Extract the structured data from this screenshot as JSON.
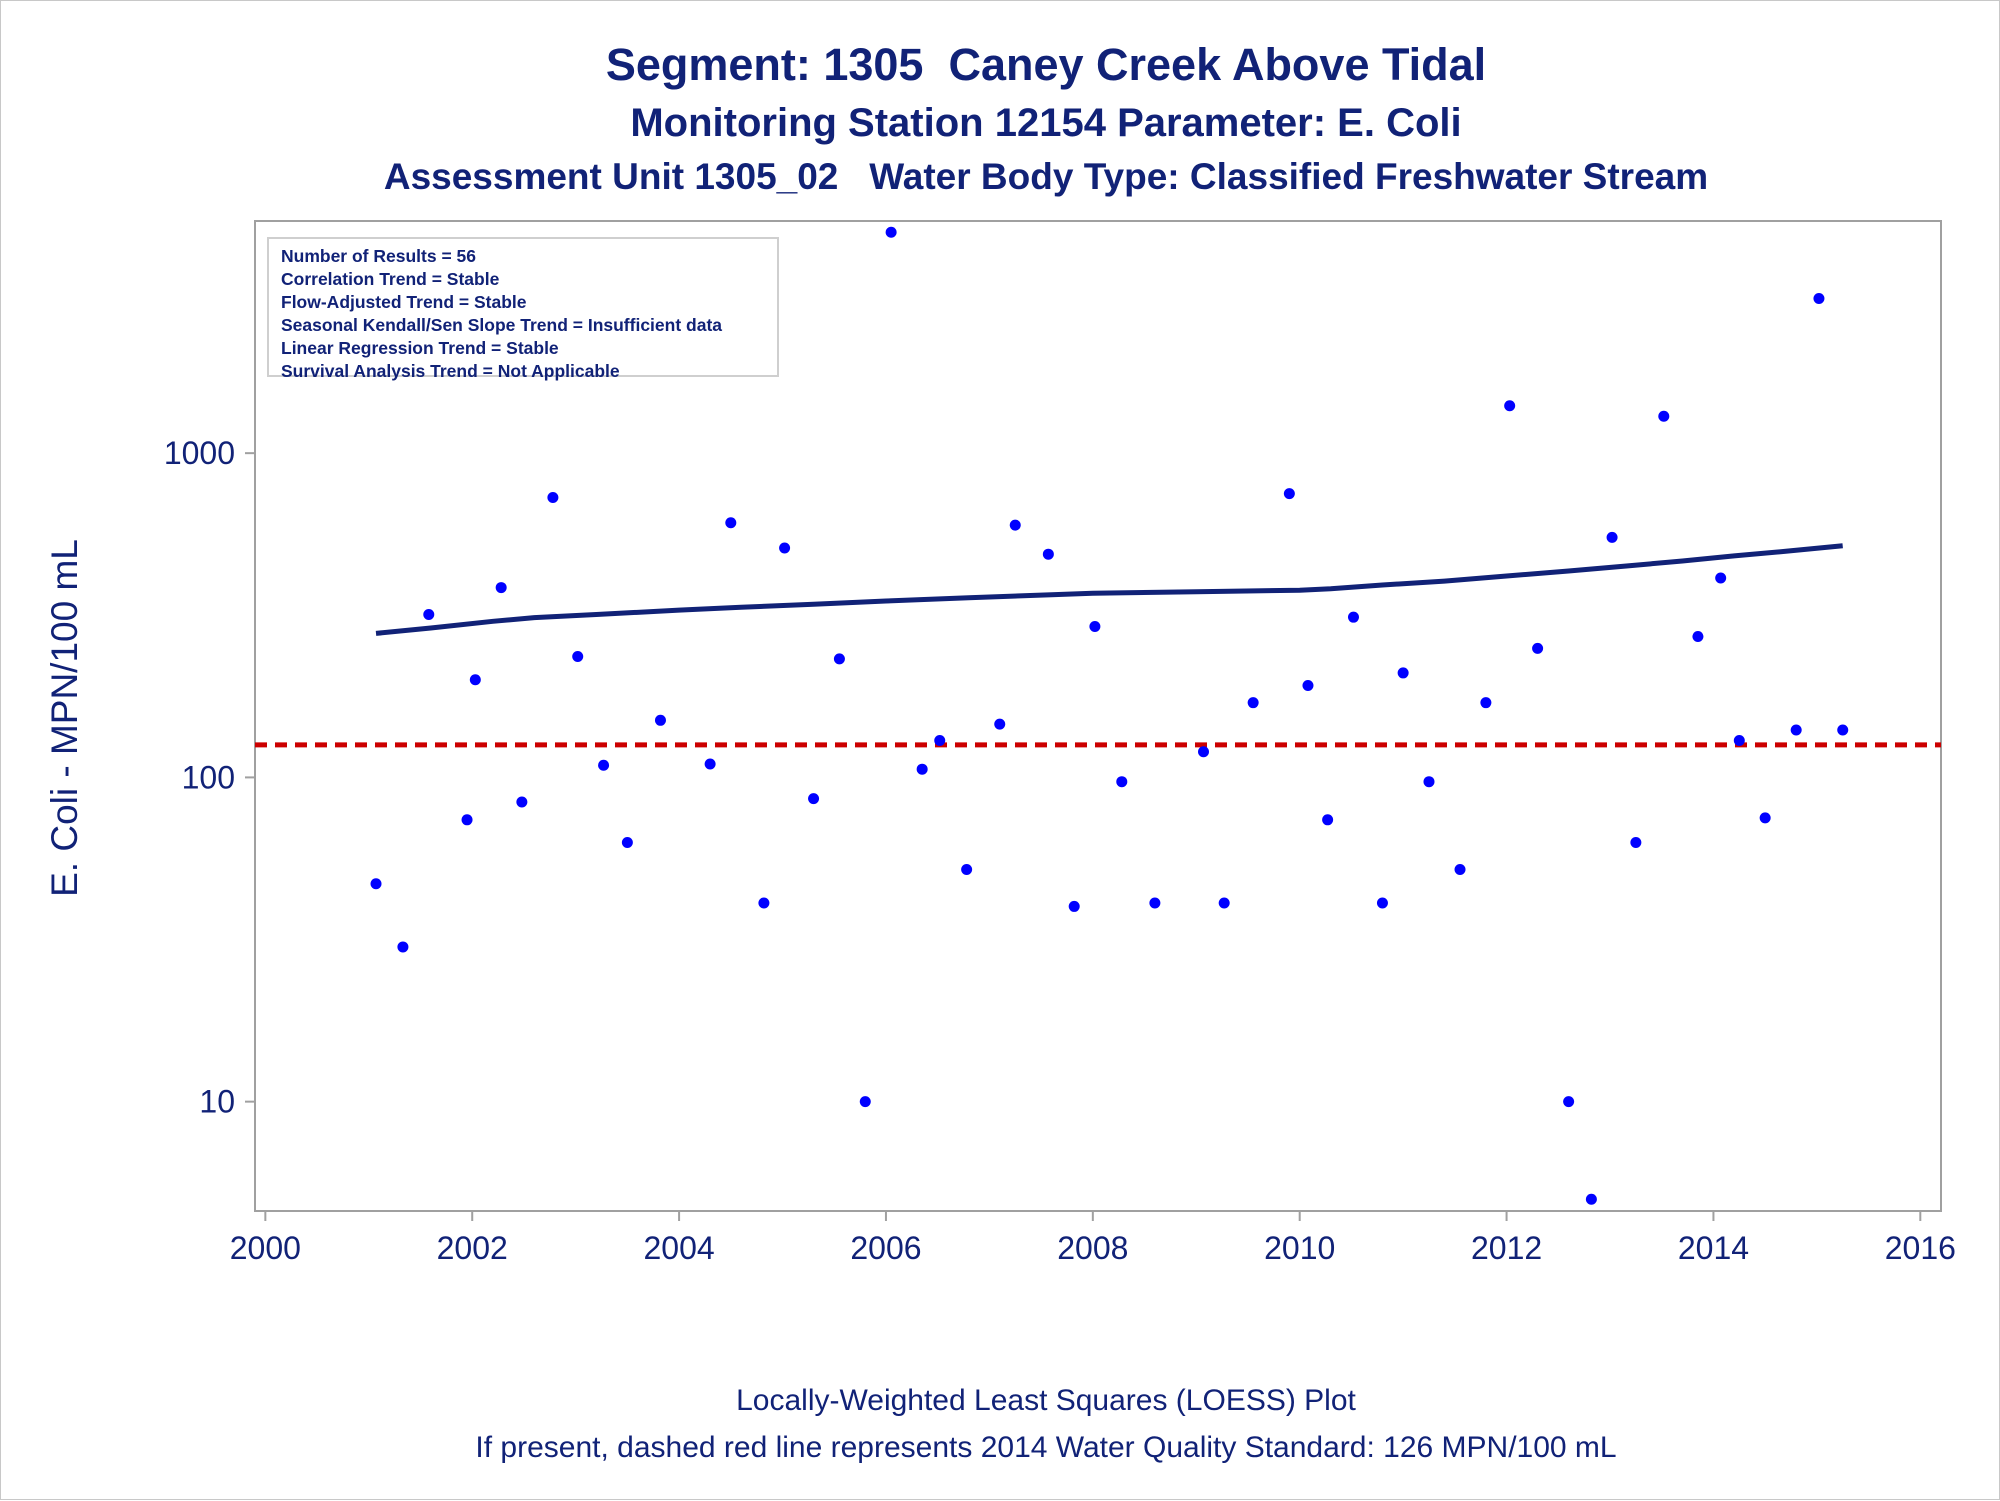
{
  "header": {
    "title": "Segment: 1305  Caney Creek Above Tidal",
    "subtitle": "Monitoring Station 12154 Parameter: E. Coli",
    "subtitle2": "Assessment Unit 1305_02   Water Body Type: Classified Freshwater Stream"
  },
  "stats_box": {
    "lines": [
      "Number of Results = 56",
      "Correlation Trend = Stable",
      "Flow-Adjusted Trend = Stable",
      "Seasonal Kendall/Sen Slope Trend = Insufficient data",
      "Linear Regression Trend = Stable",
      "Survival Analysis Trend = Not Applicable"
    ]
  },
  "footer": {
    "line1": "Locally-Weighted Least Squares (LOESS) Plot",
    "line2": "If present, dashed red line represents 2014 Water Quality Standard: 126 MPN/100 mL"
  },
  "chart_data": {
    "type": "scatter",
    "ylabel": "E. Coli - MPN/100 mL",
    "xlabel": "",
    "y_scale": "log",
    "xlim": [
      1999.9,
      2016.2
    ],
    "ylim": [
      4.6,
      5200
    ],
    "x_ticks": [
      2000,
      2002,
      2004,
      2006,
      2008,
      2010,
      2012,
      2014,
      2016
    ],
    "y_ticks": [
      10,
      100,
      1000
    ],
    "grid": false,
    "colors": {
      "points": "#0000ff",
      "trend": "#112277",
      "standard": "#cc0000",
      "text": "#112277"
    },
    "points": [
      {
        "x": 2001.07,
        "y": 47
      },
      {
        "x": 2001.33,
        "y": 30
      },
      {
        "x": 2001.58,
        "y": 318
      },
      {
        "x": 2001.95,
        "y": 74
      },
      {
        "x": 2002.03,
        "y": 200
      },
      {
        "x": 2002.28,
        "y": 385
      },
      {
        "x": 2002.48,
        "y": 84
      },
      {
        "x": 2002.78,
        "y": 730
      },
      {
        "x": 2003.02,
        "y": 236
      },
      {
        "x": 2003.27,
        "y": 109
      },
      {
        "x": 2003.5,
        "y": 63
      },
      {
        "x": 2003.82,
        "y": 150
      },
      {
        "x": 2004.3,
        "y": 110
      },
      {
        "x": 2004.5,
        "y": 610
      },
      {
        "x": 2004.82,
        "y": 41
      },
      {
        "x": 2005.02,
        "y": 510
      },
      {
        "x": 2005.3,
        "y": 86
      },
      {
        "x": 2005.55,
        "y": 232
      },
      {
        "x": 2005.8,
        "y": 10
      },
      {
        "x": 2006.05,
        "y": 4800
      },
      {
        "x": 2006.35,
        "y": 106
      },
      {
        "x": 2006.52,
        "y": 130
      },
      {
        "x": 2006.78,
        "y": 52
      },
      {
        "x": 2007.1,
        "y": 146
      },
      {
        "x": 2007.25,
        "y": 600
      },
      {
        "x": 2007.57,
        "y": 488
      },
      {
        "x": 2007.82,
        "y": 40
      },
      {
        "x": 2008.02,
        "y": 292
      },
      {
        "x": 2008.28,
        "y": 97
      },
      {
        "x": 2008.6,
        "y": 41
      },
      {
        "x": 2009.07,
        "y": 120
      },
      {
        "x": 2009.27,
        "y": 41
      },
      {
        "x": 2009.55,
        "y": 170
      },
      {
        "x": 2009.9,
        "y": 750
      },
      {
        "x": 2010.08,
        "y": 192
      },
      {
        "x": 2010.27,
        "y": 74
      },
      {
        "x": 2010.52,
        "y": 312
      },
      {
        "x": 2010.8,
        "y": 41
      },
      {
        "x": 2011.0,
        "y": 210
      },
      {
        "x": 2011.25,
        "y": 97
      },
      {
        "x": 2011.55,
        "y": 52
      },
      {
        "x": 2011.8,
        "y": 170
      },
      {
        "x": 2012.03,
        "y": 1400
      },
      {
        "x": 2012.3,
        "y": 250
      },
      {
        "x": 2012.6,
        "y": 10
      },
      {
        "x": 2012.82,
        "y": 5
      },
      {
        "x": 2013.02,
        "y": 550
      },
      {
        "x": 2013.25,
        "y": 63
      },
      {
        "x": 2013.52,
        "y": 1300
      },
      {
        "x": 2013.85,
        "y": 272
      },
      {
        "x": 2014.07,
        "y": 412
      },
      {
        "x": 2014.25,
        "y": 130
      },
      {
        "x": 2014.5,
        "y": 75
      },
      {
        "x": 2014.8,
        "y": 140
      },
      {
        "x": 2015.02,
        "y": 3000
      },
      {
        "x": 2015.25,
        "y": 140
      }
    ],
    "trend_line": [
      {
        "x": 2001.07,
        "y": 278
      },
      {
        "x": 2001.6,
        "y": 289
      },
      {
        "x": 2002.2,
        "y": 303
      },
      {
        "x": 2002.6,
        "y": 311
      },
      {
        "x": 2003.2,
        "y": 318
      },
      {
        "x": 2004.0,
        "y": 328
      },
      {
        "x": 2004.6,
        "y": 335
      },
      {
        "x": 2005.3,
        "y": 342
      },
      {
        "x": 2006.0,
        "y": 350
      },
      {
        "x": 2006.8,
        "y": 358
      },
      {
        "x": 2007.6,
        "y": 366
      },
      {
        "x": 2008.0,
        "y": 370
      },
      {
        "x": 2009.0,
        "y": 374
      },
      {
        "x": 2010.0,
        "y": 378
      },
      {
        "x": 2010.3,
        "y": 382
      },
      {
        "x": 2010.8,
        "y": 392
      },
      {
        "x": 2011.4,
        "y": 403
      },
      {
        "x": 2012.0,
        "y": 418
      },
      {
        "x": 2012.6,
        "y": 433
      },
      {
        "x": 2013.2,
        "y": 450
      },
      {
        "x": 2013.7,
        "y": 465
      },
      {
        "x": 2014.2,
        "y": 482
      },
      {
        "x": 2014.7,
        "y": 498
      },
      {
        "x": 2015.25,
        "y": 518
      }
    ],
    "standard_line": {
      "y": 126
    }
  }
}
